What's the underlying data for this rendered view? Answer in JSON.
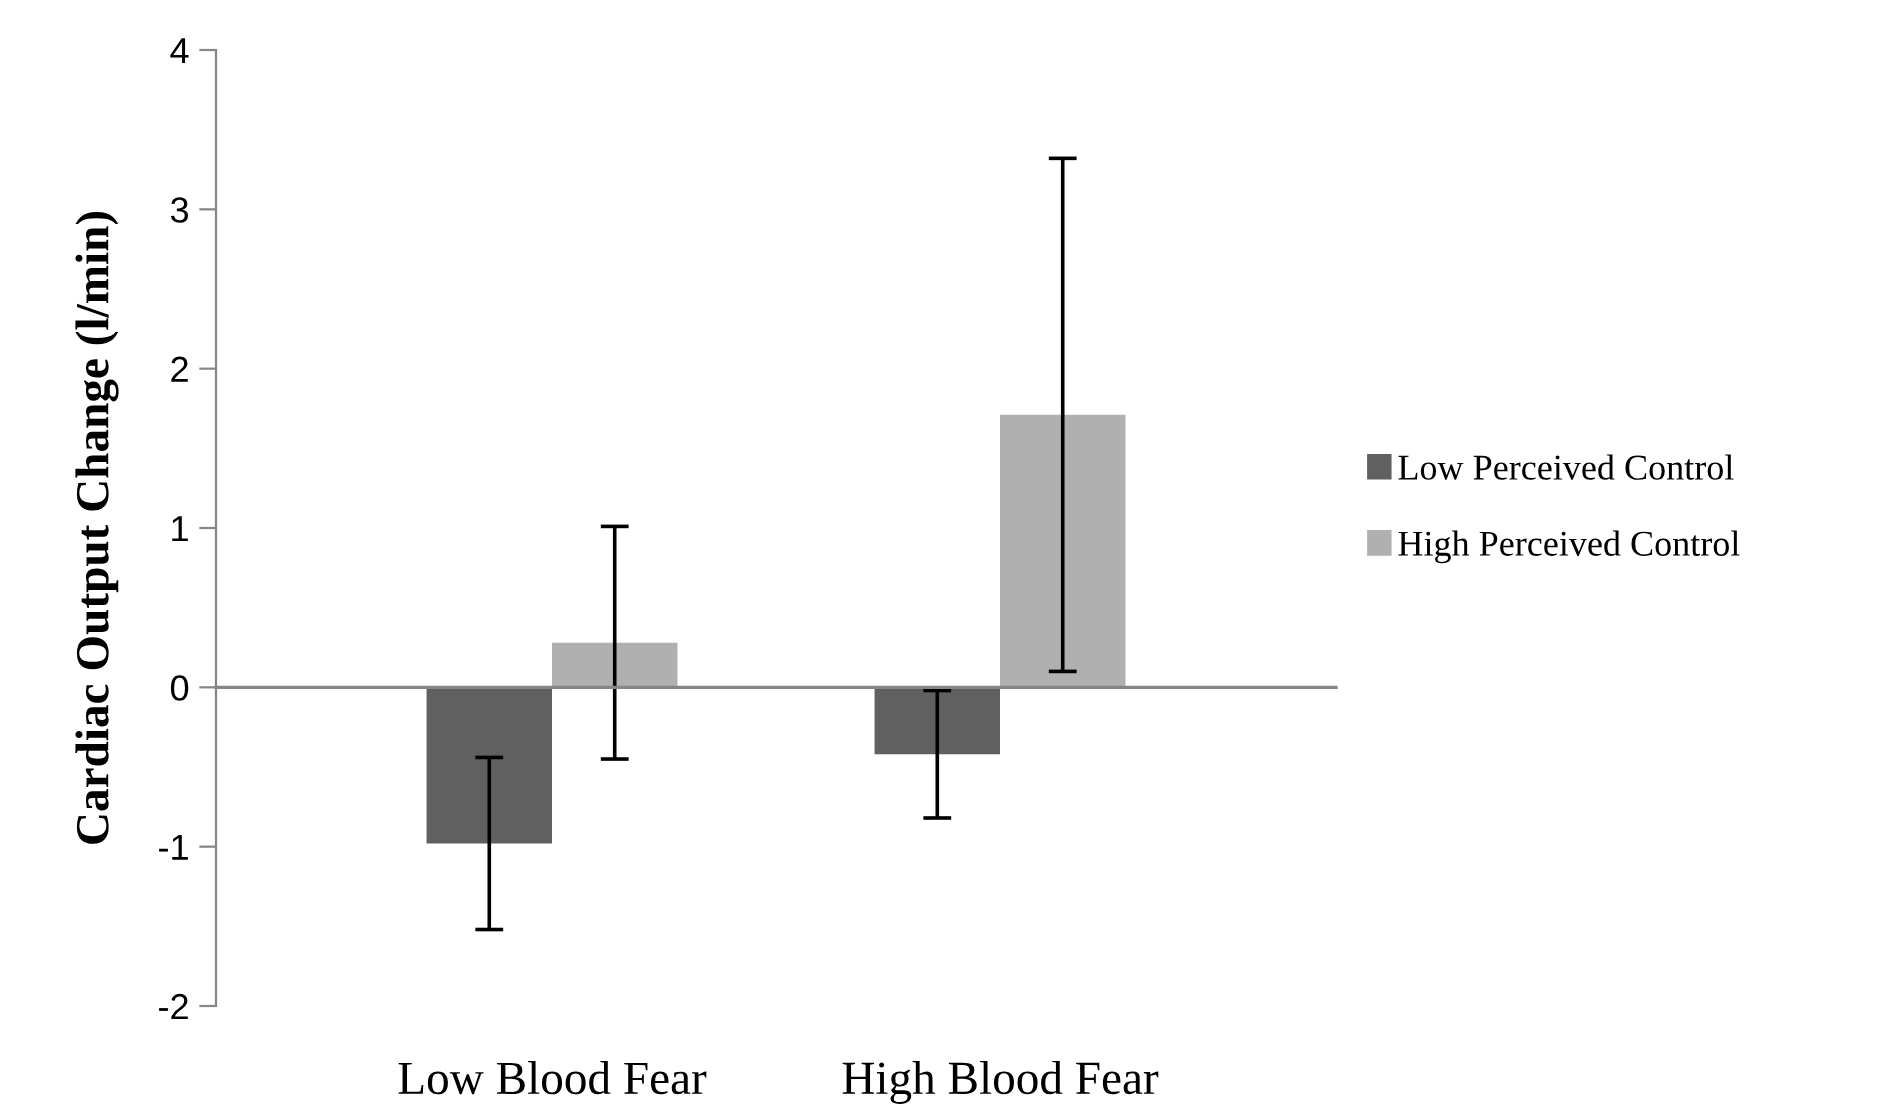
{
  "chart_data": {
    "type": "bar",
    "ylabel": "Cardiac Output Change (l/min)",
    "categories": [
      "Low Blood Fear",
      "High Blood Fear"
    ],
    "series": [
      {
        "name": "Low Perceived Control",
        "color": "#606060",
        "values": [
          -0.98,
          -0.42
        ],
        "errors": [
          0.54,
          0.4
        ]
      },
      {
        "name": "High Perceived Control",
        "color": "#b0b0b0",
        "values": [
          0.28,
          1.71
        ],
        "errors": [
          0.73,
          1.61
        ]
      }
    ],
    "ylim": [
      -2,
      4
    ],
    "yticks": [
      -2,
      -1,
      0,
      1,
      2,
      3,
      4
    ],
    "legend": "right"
  }
}
